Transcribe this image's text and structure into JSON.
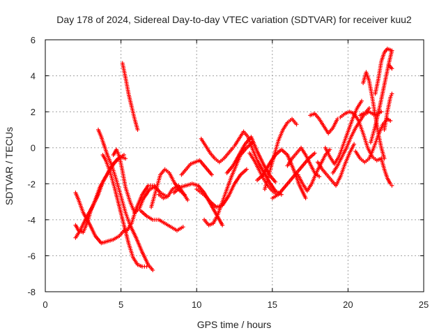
{
  "chart_data": {
    "type": "scatter",
    "title": "Day 178 of 2024, Sidereal Day-to-day VTEC variation (SDTVAR) for receiver kuu2",
    "xlabel": "GPS time / hours",
    "ylabel": "SDTVAR / TECUs",
    "xlim": [
      0,
      25
    ],
    "ylim": [
      -8,
      6
    ],
    "xticks": [
      0,
      5,
      10,
      15,
      20,
      25
    ],
    "yticks": [
      -8,
      -6,
      -4,
      -2,
      0,
      2,
      4,
      6
    ],
    "grid": true,
    "marker": "plus",
    "color": "#ff0000",
    "series": [
      {
        "x": [
          2.0,
          2.2,
          2.5,
          2.8,
          3.0,
          3.3,
          3.6,
          4.0,
          4.4,
          4.8,
          5.2
        ],
        "y": [
          -4.3,
          -4.6,
          -4.7,
          -4.1,
          -3.5,
          -2.9,
          -2.2,
          -1.6,
          -1.0,
          -0.6,
          -0.4
        ]
      },
      {
        "x": [
          2.0,
          2.3,
          2.7,
          3.1,
          3.5,
          3.8,
          4.2,
          4.6,
          5.0,
          5.3
        ],
        "y": [
          -5.0,
          -4.6,
          -3.9,
          -3.3,
          -2.6,
          -1.9,
          -1.3,
          -0.8,
          -0.5,
          -0.6
        ]
      },
      {
        "x": [
          2.0,
          2.2,
          2.5,
          2.9,
          3.3,
          3.7,
          4.1,
          4.5,
          4.9,
          5.2
        ],
        "y": [
          -2.5,
          -2.9,
          -3.6,
          -4.2,
          -4.9,
          -5.3,
          -5.2,
          -5.1,
          -4.9,
          -4.6
        ]
      },
      {
        "x": [
          3.5,
          3.7,
          3.9,
          4.1,
          4.4,
          4.7,
          5.0,
          5.3,
          5.6,
          6.0,
          6.4,
          6.8,
          7.1
        ],
        "y": [
          1.0,
          0.6,
          0.1,
          -0.4,
          -1.0,
          -1.8,
          -2.7,
          -3.6,
          -4.3,
          -5.0,
          -5.8,
          -6.5,
          -6.8
        ]
      },
      {
        "x": [
          3.8,
          4.0,
          4.3,
          4.6,
          4.9,
          5.2,
          5.5,
          5.8,
          6.1,
          6.4,
          6.7
        ],
        "y": [
          -0.4,
          -0.7,
          -1.4,
          -2.3,
          -3.3,
          -4.3,
          -5.3,
          -6.1,
          -6.5,
          -6.6,
          -6.6
        ]
      },
      {
        "x": [
          4.5,
          4.7,
          4.9,
          5.1,
          5.3,
          5.6,
          5.9,
          6.2,
          6.5,
          6.9,
          7.2
        ],
        "y": [
          -0.4,
          -0.1,
          -0.5,
          -1.3,
          -2.2,
          -3.0,
          -3.6,
          -3.4,
          -2.8,
          -2.3,
          -2.2
        ]
      },
      {
        "x": [
          5.1,
          5.3,
          5.5,
          5.7,
          5.9,
          6.1
        ],
        "y": [
          4.7,
          3.9,
          3.0,
          2.3,
          1.6,
          1.0
        ]
      },
      {
        "x": [
          5.4,
          5.7,
          6.0,
          6.4,
          6.8,
          7.2,
          7.6,
          8.0
        ],
        "y": [
          -4.6,
          -4.2,
          -3.4,
          -2.6,
          -2.1,
          -2.1,
          -2.5,
          -2.7
        ]
      },
      {
        "x": [
          6.3,
          6.7,
          7.1,
          7.5,
          7.9,
          8.3,
          8.7,
          9.1
        ],
        "y": [
          -3.5,
          -3.8,
          -4.0,
          -4.0,
          -4.2,
          -4.4,
          -4.6,
          -4.4
        ]
      },
      {
        "x": [
          7.0,
          7.3,
          7.6,
          7.9,
          8.2,
          8.5,
          8.9,
          9.2
        ],
        "y": [
          -3.3,
          -2.4,
          -1.5,
          -1.2,
          -1.4,
          -1.9,
          -2.4,
          -2.6
        ]
      },
      {
        "x": [
          7.5,
          7.8,
          8.1,
          8.4,
          8.8,
          9.1,
          9.4
        ],
        "y": [
          -2.6,
          -2.8,
          -2.7,
          -2.3,
          -2.1,
          -2.5,
          -2.9
        ]
      },
      {
        "x": [
          8.5,
          8.9,
          9.3,
          9.7,
          10.1,
          10.5,
          10.9,
          11.3,
          11.7
        ],
        "y": [
          -2.5,
          -2.2,
          -2.1,
          -2.0,
          -2.1,
          -2.5,
          -3.1,
          -3.7,
          -4.3
        ]
      },
      {
        "x": [
          9.0,
          9.3,
          9.6,
          9.9,
          10.2,
          10.6,
          11.0
        ],
        "y": [
          -1.5,
          -1.2,
          -0.9,
          -0.8,
          -0.7,
          -1.1,
          -1.5
        ]
      },
      {
        "x": [
          10.3,
          10.6,
          10.9,
          11.2,
          11.5,
          11.8,
          12.1,
          12.4
        ],
        "y": [
          0.5,
          0.1,
          -0.3,
          -0.6,
          -0.8,
          -0.6,
          -0.3,
          0.0
        ]
      },
      {
        "x": [
          10.0,
          10.3,
          10.6,
          10.9,
          11.3,
          11.7,
          12.1,
          12.5,
          12.9,
          13.3
        ],
        "y": [
          -2.3,
          -2.5,
          -2.7,
          -3.0,
          -3.3,
          -3.2,
          -2.7,
          -2.0,
          -1.5,
          -1.2
        ]
      },
      {
        "x": [
          10.5,
          10.8,
          11.1,
          11.4,
          11.7,
          12.0,
          12.3,
          12.6,
          12.9,
          13.3,
          13.7
        ],
        "y": [
          -4.0,
          -4.3,
          -4.2,
          -3.7,
          -3.0,
          -2.3,
          -1.6,
          -1.0,
          -0.4,
          0.0,
          0.3
        ]
      },
      {
        "x": [
          12.0,
          12.4,
          12.8,
          13.2,
          13.6,
          14.0,
          14.4,
          14.8,
          15.2
        ],
        "y": [
          -1.4,
          -1.0,
          -0.4,
          0.2,
          0.6,
          -0.2,
          -0.9,
          -1.5,
          -1.9
        ]
      },
      {
        "x": [
          12.5,
          12.8,
          13.1,
          13.4,
          13.7,
          14.0,
          14.4,
          14.8,
          15.2,
          15.6
        ],
        "y": [
          0.1,
          0.5,
          0.9,
          0.6,
          -0.1,
          -0.7,
          -1.3,
          -1.9,
          -2.4,
          -2.6
        ]
      },
      {
        "x": [
          13.5,
          13.8,
          14.1,
          14.4,
          14.7,
          15.0,
          15.3
        ],
        "y": [
          -0.3,
          -0.7,
          -1.2,
          -1.7,
          -2.1,
          -2.4,
          -2.6
        ]
      },
      {
        "x": [
          14.0,
          14.4,
          14.8,
          15.2,
          15.6,
          16.0,
          16.4,
          16.8,
          17.2
        ],
        "y": [
          -1.8,
          -1.5,
          -0.9,
          -0.4,
          -0.1,
          -0.4,
          -1.2,
          -2.1,
          -2.8
        ]
      },
      {
        "x": [
          14.5,
          14.8,
          15.1,
          15.4,
          15.7,
          16.0,
          16.3,
          16.6
        ],
        "y": [
          -2.3,
          -1.4,
          -0.5,
          0.4,
          1.0,
          1.4,
          1.6,
          1.3
        ]
      },
      {
        "x": [
          15.0,
          15.4,
          15.8,
          16.2,
          16.6,
          17.0,
          17.4,
          17.8
        ],
        "y": [
          -2.8,
          -2.6,
          -2.2,
          -1.8,
          -1.4,
          -1.0,
          -0.6,
          -0.3
        ]
      },
      {
        "x": [
          16.0,
          16.3,
          16.6,
          16.9,
          17.2,
          17.5,
          17.8,
          18.1
        ],
        "y": [
          -1.0,
          -0.6,
          -0.3,
          0.0,
          -0.4,
          -0.9,
          -1.4,
          -1.6
        ]
      },
      {
        "x": [
          16.7,
          17.0,
          17.3,
          17.6,
          17.9,
          18.2,
          18.5,
          18.8
        ],
        "y": [
          -1.5,
          -2.0,
          -2.4,
          -2.0,
          -1.4,
          -0.9,
          -0.4,
          -0.1
        ]
      },
      {
        "x": [
          17.5,
          17.8,
          18.1,
          18.4,
          18.7,
          19.0,
          19.3
        ],
        "y": [
          1.8,
          1.9,
          1.6,
          1.2,
          0.8,
          1.1,
          1.6
        ]
      },
      {
        "x": [
          18.0,
          18.3,
          18.6,
          18.9,
          19.2,
          19.5,
          19.8,
          20.1,
          20.4
        ],
        "y": [
          -0.8,
          -1.2,
          -1.5,
          -1.8,
          -2.1,
          -1.6,
          -0.9,
          -0.3,
          0.2
        ]
      },
      {
        "x": [
          18.5,
          18.8,
          19.1,
          19.4,
          19.7,
          20.0,
          20.3,
          20.6,
          20.9
        ],
        "y": [
          0.0,
          -0.5,
          -0.9,
          -0.5,
          0.2,
          0.9,
          1.6,
          2.2,
          2.6
        ]
      },
      {
        "x": [
          19.0,
          19.3,
          19.6,
          19.9,
          20.2,
          20.5,
          20.8,
          21.1,
          21.4
        ],
        "y": [
          -1.4,
          -1.0,
          -0.5,
          0.0,
          0.6,
          1.1,
          1.5,
          1.9,
          2.2
        ]
      },
      {
        "x": [
          19.5,
          19.8,
          20.1,
          20.4,
          20.7,
          21.0,
          21.3,
          21.6,
          21.9,
          22.2
        ],
        "y": [
          1.7,
          1.9,
          2.0,
          1.9,
          1.5,
          0.8,
          0.0,
          -0.5,
          -0.7,
          -0.6
        ]
      },
      {
        "x": [
          20.5,
          20.8,
          21.1,
          21.4,
          21.7,
          22.0,
          22.3,
          22.6,
          22.8
        ],
        "y": [
          -0.2,
          -0.6,
          -0.8,
          -0.6,
          0.0,
          0.7,
          1.3,
          1.6,
          1.5
        ]
      },
      {
        "x": [
          20.8,
          21.0,
          21.2,
          21.4,
          21.6,
          21.8,
          22.0,
          22.2
        ],
        "y": [
          1.8,
          1.9,
          1.9,
          2.0,
          1.9,
          1.8,
          1.9,
          2.0
        ]
      },
      {
        "x": [
          21.0,
          21.2,
          21.4,
          21.6,
          21.8,
          22.0,
          22.2,
          22.4
        ],
        "y": [
          3.6,
          4.2,
          3.7,
          2.8,
          1.8,
          0.8,
          0.0,
          -0.6
        ]
      },
      {
        "x": [
          21.5,
          21.8,
          22.1,
          22.4,
          22.7,
          22.9
        ],
        "y": [
          0.3,
          1.2,
          2.3,
          3.5,
          4.7,
          5.4
        ]
      },
      {
        "x": [
          21.8,
          22.0,
          22.2,
          22.4,
          22.6,
          22.9
        ],
        "y": [
          3.0,
          3.8,
          4.8,
          5.3,
          5.5,
          5.4
        ]
      },
      {
        "x": [
          22.2,
          22.4,
          22.6,
          22.8,
          22.9
        ],
        "y": [
          -0.6,
          -1.2,
          -1.7,
          -2.0,
          -2.1
        ]
      },
      {
        "x": [
          22.4,
          22.6,
          22.8,
          22.9
        ],
        "y": [
          1.0,
          2.0,
          2.8,
          3.0
        ]
      },
      {
        "x": [
          22.7,
          22.9
        ],
        "y": [
          4.6,
          4.4
        ]
      }
    ]
  }
}
